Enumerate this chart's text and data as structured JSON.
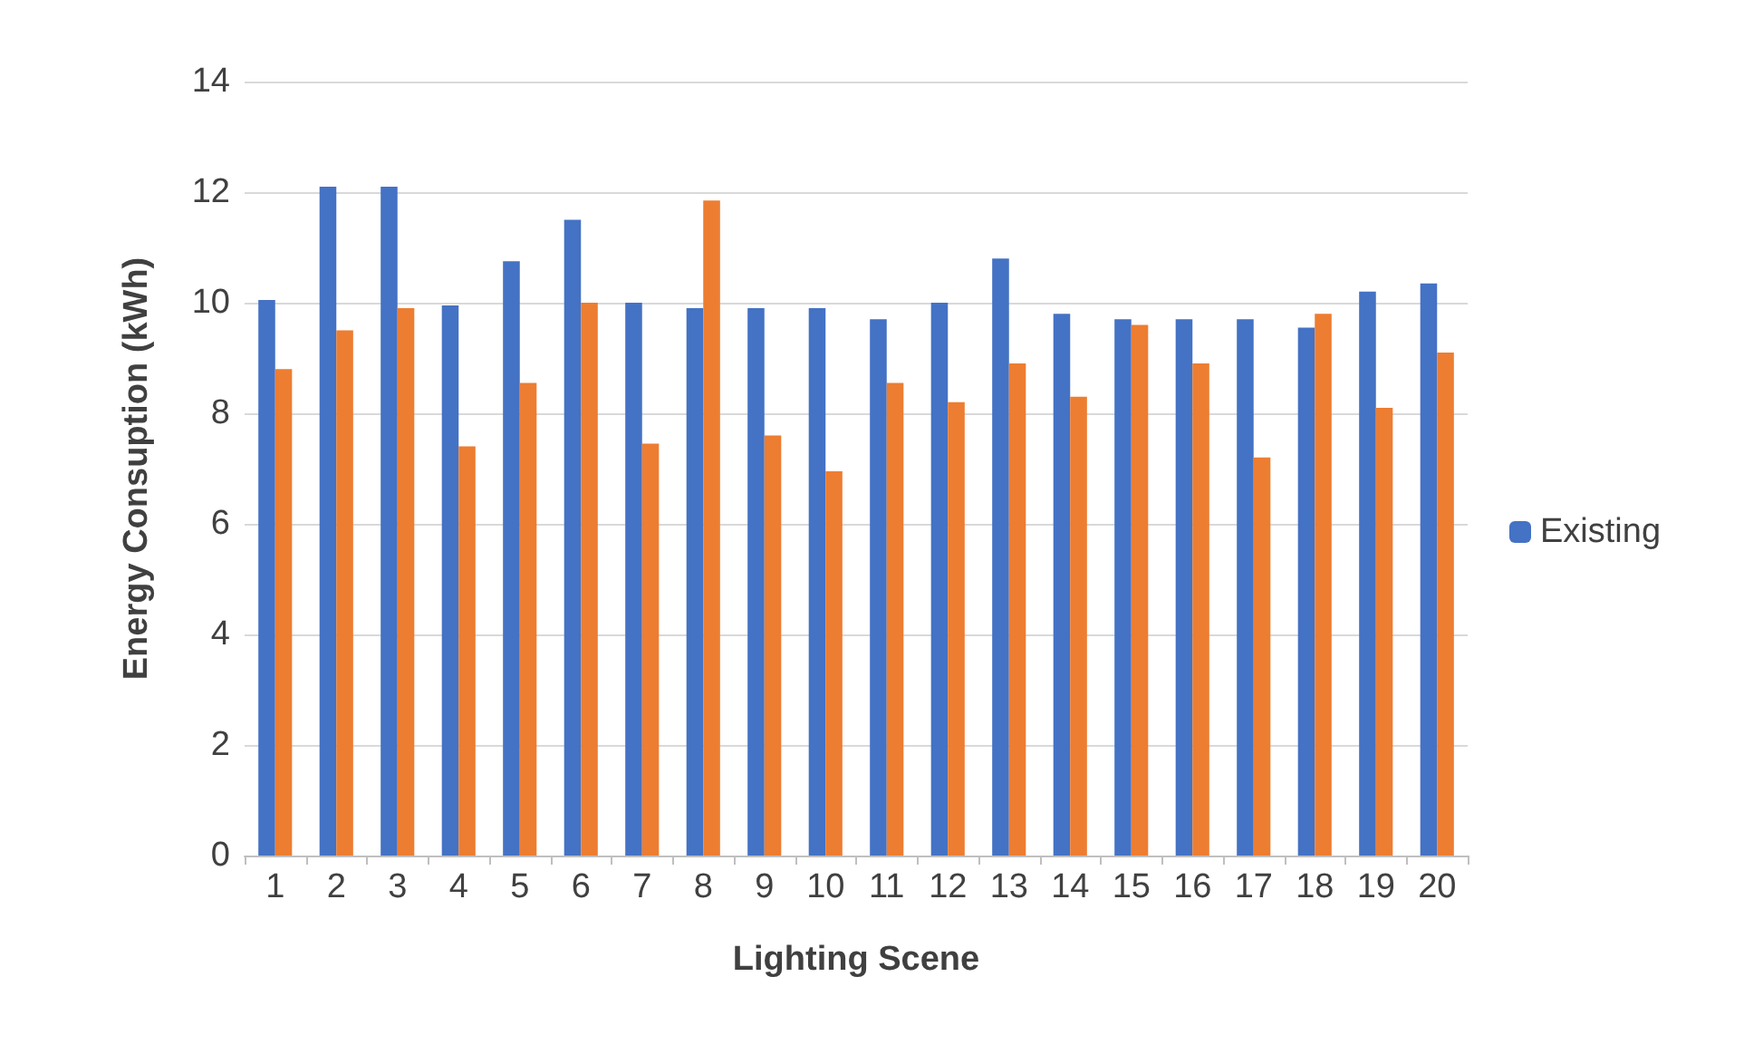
{
  "chart_data": {
    "type": "bar",
    "xlabel": "Lighting Scene",
    "ylabel": "Energy Consuption (kWh)",
    "categories": [
      "1",
      "2",
      "3",
      "4",
      "5",
      "6",
      "7",
      "8",
      "9",
      "10",
      "11",
      "12",
      "13",
      "14",
      "15",
      "16",
      "17",
      "18",
      "19",
      "20"
    ],
    "series": [
      {
        "name": "Existing",
        "color": "#4472c4",
        "values": [
          10.05,
          12.1,
          12.1,
          9.95,
          10.75,
          11.5,
          10.0,
          9.9,
          9.9,
          9.9,
          9.7,
          10.0,
          10.8,
          9.8,
          9.7,
          9.7,
          9.7,
          9.55,
          10.2,
          10.35
        ]
      },
      {
        "color": "#ed7d31",
        "values": [
          8.8,
          9.5,
          9.9,
          7.4,
          8.55,
          10.0,
          7.45,
          11.85,
          7.6,
          6.95,
          8.55,
          8.2,
          8.9,
          8.3,
          9.6,
          8.9,
          7.2,
          9.8,
          8.1,
          9.1
        ]
      }
    ],
    "ylim": [
      0,
      14
    ],
    "yticks": [
      0,
      2,
      4,
      6,
      8,
      10,
      12,
      14
    ],
    "grid": "y",
    "legend": "right"
  }
}
